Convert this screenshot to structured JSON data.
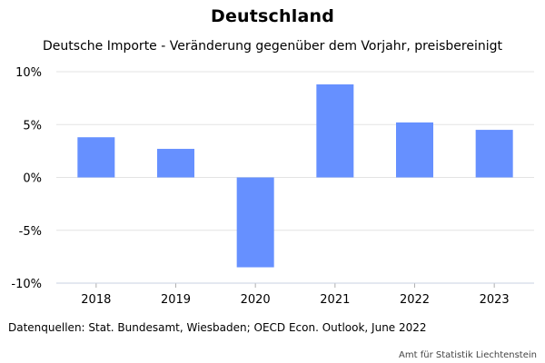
{
  "chart_data": {
    "type": "bar",
    "title": "Deutschland",
    "subtitle": "Deutsche Importe - Veränderung gegenüber dem Vorjahr, preisbereinigt",
    "categories": [
      "2018",
      "2019",
      "2020",
      "2021",
      "2022",
      "2023"
    ],
    "values": [
      3.8,
      2.7,
      -8.5,
      8.8,
      5.2,
      4.5
    ],
    "ylim": [
      -10,
      10
    ],
    "yticks": [
      10,
      5,
      0,
      -5,
      -10
    ],
    "ytick_labels": [
      "10%",
      "5%",
      "0%",
      "-5%",
      "-10%"
    ],
    "xlabel": "",
    "ylabel": "",
    "grid": true,
    "bar_color": "#6690ff",
    "grid_color": "#e3e3e3"
  },
  "footer": {
    "source": "Datenquellen: Stat. Bundesamt, Wiesbaden; OECD Econ. Outlook, June 2022",
    "credit": "Amt für Statistik Liechtenstein"
  }
}
